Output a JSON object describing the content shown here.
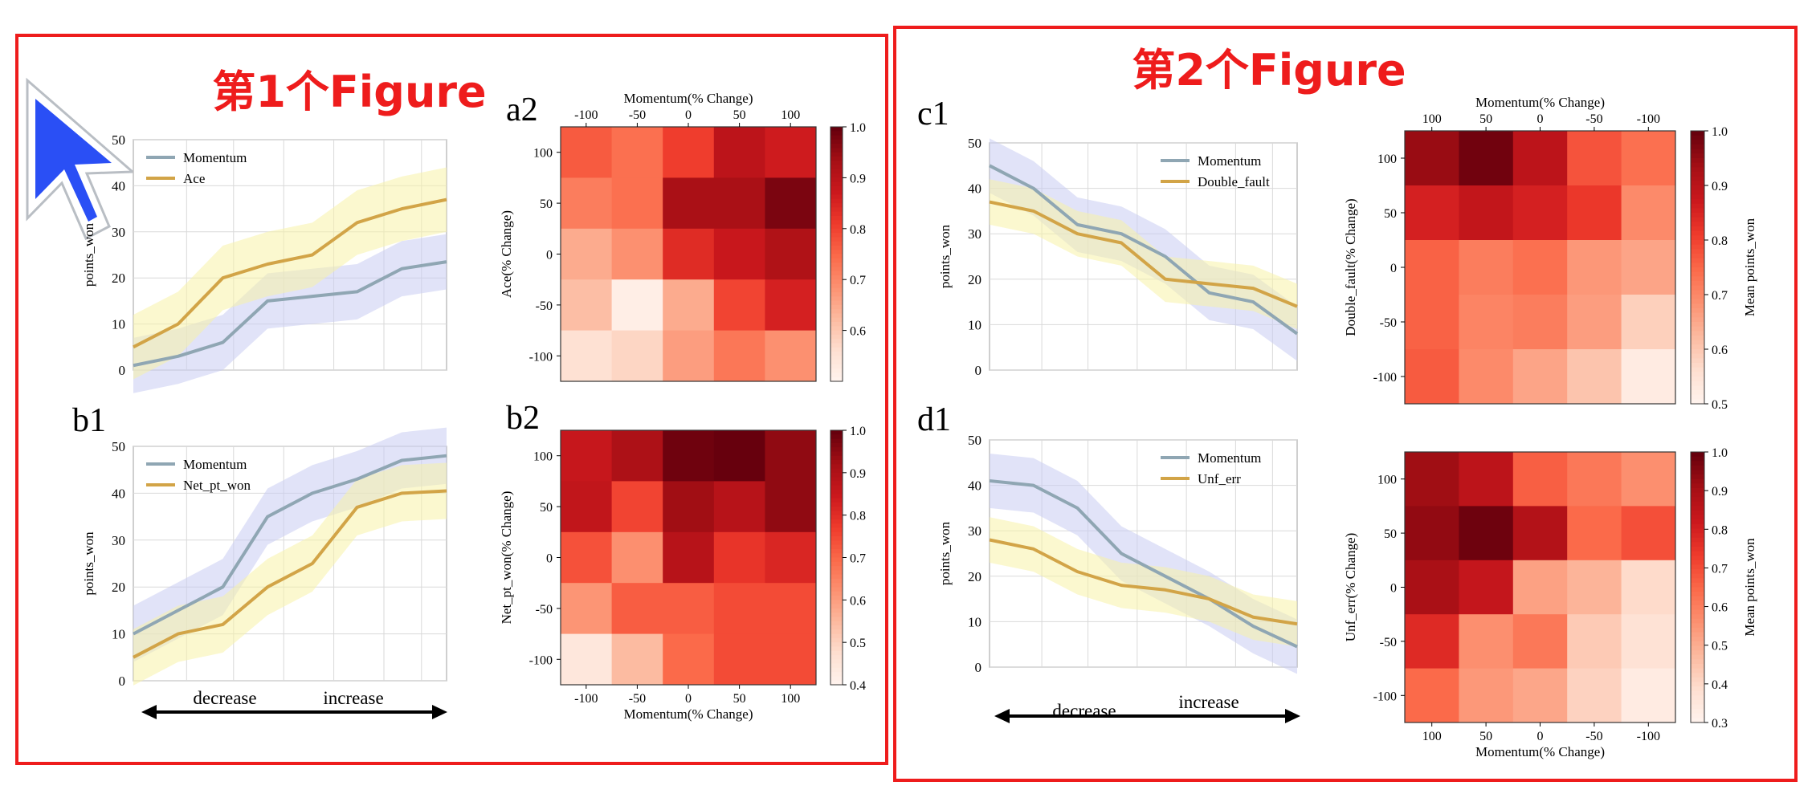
{
  "figure_titles": [
    "第1个Figure",
    "第2个Figure"
  ],
  "colors": {
    "frame_red": "#ee1c1c",
    "momentum_line": "#8fa6b3",
    "other_line": "#d2a447",
    "momentum_band": "#c9ccf2",
    "other_band": "#f7f2a8",
    "cursor": "#2a4ff5",
    "heatmap_low": "#fff5f0",
    "heatmap_high": "#67000d"
  },
  "axis_text": {
    "decrease": "decrease",
    "increase": "increase",
    "colorbar_label": "Mean points_won"
  },
  "chart_data": [
    {
      "id": "a1",
      "type": "line",
      "panel_label": "",
      "ylabel": "points_won",
      "ylim": [
        0,
        50
      ],
      "yticks": [
        0,
        10,
        20,
        30,
        40,
        50
      ],
      "legend": "top-left",
      "series": [
        {
          "name": "Momentum",
          "values": [
            1,
            3,
            6,
            15,
            16,
            17,
            22,
            23.5
          ],
          "band": 6,
          "color_key": "momentum_line",
          "band_key": "momentum_band"
        },
        {
          "name": "Ace",
          "values": [
            5,
            10,
            20,
            23,
            25,
            32,
            35,
            37
          ],
          "band": 7,
          "color_key": "other_line",
          "band_key": "other_band"
        }
      ]
    },
    {
      "id": "b1",
      "type": "line",
      "panel_label": "b1",
      "ylabel": "points_won",
      "ylim": [
        0,
        50
      ],
      "yticks": [
        0,
        10,
        20,
        30,
        40,
        50
      ],
      "legend": "top-left",
      "series": [
        {
          "name": "Momentum",
          "values": [
            10,
            15,
            20,
            35,
            40,
            43,
            47,
            48
          ],
          "band": 6,
          "color_key": "momentum_line",
          "band_key": "momentum_band"
        },
        {
          "name": "Net_pt_won",
          "values": [
            5,
            10,
            12,
            20,
            25,
            37,
            40,
            40.5
          ],
          "band": 6,
          "color_key": "other_line",
          "band_key": "other_band"
        }
      ]
    },
    {
      "id": "c1",
      "type": "line",
      "panel_label": "c1",
      "ylabel": "points_won",
      "ylim": [
        0,
        50
      ],
      "yticks": [
        0,
        10,
        20,
        30,
        40,
        50
      ],
      "legend": "top-right",
      "series": [
        {
          "name": "Momentum",
          "values": [
            45,
            40,
            32,
            30,
            25,
            17,
            15,
            8
          ],
          "band": 6,
          "color_key": "momentum_line",
          "band_key": "momentum_band"
        },
        {
          "name": "Double_fault",
          "values": [
            37,
            35,
            30,
            28,
            20,
            19,
            18,
            14
          ],
          "band": 5,
          "color_key": "other_line",
          "band_key": "other_band"
        }
      ]
    },
    {
      "id": "d1",
      "type": "line",
      "panel_label": "d1",
      "ylabel": "points_won",
      "ylim": [
        0,
        50
      ],
      "yticks": [
        0,
        10,
        20,
        30,
        40,
        50
      ],
      "legend": "top-right",
      "series": [
        {
          "name": "Momentum",
          "values": [
            41,
            40,
            35,
            25,
            20,
            15,
            9,
            4.5
          ],
          "band": 6,
          "color_key": "momentum_line",
          "band_key": "momentum_band"
        },
        {
          "name": "Unf_err",
          "values": [
            28,
            26,
            21,
            18,
            17,
            15,
            11,
            9.5
          ],
          "band": 5,
          "color_key": "other_line",
          "band_key": "other_band"
        }
      ]
    },
    {
      "id": "a2",
      "type": "heatmap",
      "panel_label": "a2",
      "xlabel": "Momentum(% Change)",
      "xlabel_position": "top",
      "ylabel": "Ace(% Change)",
      "x": [
        "-100",
        "-50",
        "0",
        "50",
        "100"
      ],
      "y": [
        "100",
        "50",
        "0",
        "-50",
        "-100"
      ],
      "colorbar_ticks": [
        0.6,
        0.7,
        0.8,
        0.9,
        1.0
      ],
      "vmin": 0.5,
      "vmax": 1.0,
      "values": [
        [
          0.77,
          0.74,
          0.81,
          0.9,
          0.87
        ],
        [
          0.72,
          0.74,
          0.93,
          0.93,
          0.98
        ],
        [
          0.65,
          0.69,
          0.84,
          0.88,
          0.92
        ],
        [
          0.62,
          0.52,
          0.65,
          0.8,
          0.86
        ],
        [
          0.56,
          0.58,
          0.67,
          0.73,
          0.69
        ]
      ]
    },
    {
      "id": "b2",
      "type": "heatmap",
      "panel_label": "b2",
      "xlabel": "Momentum(% Change)",
      "xlabel_position": "bottom",
      "ylabel": "Net_pt_won(% Change)",
      "x": [
        "-100",
        "-50",
        "0",
        "50",
        "100"
      ],
      "y": [
        "100",
        "50",
        "0",
        "-50",
        "-100"
      ],
      "colorbar_ticks": [
        0.4,
        0.5,
        0.6,
        0.7,
        0.8,
        0.9,
        1.0
      ],
      "vmin": 0.4,
      "vmax": 1.0,
      "values": [
        [
          0.86,
          0.91,
          0.99,
          1.0,
          0.95
        ],
        [
          0.87,
          0.76,
          0.93,
          0.89,
          0.95
        ],
        [
          0.74,
          0.63,
          0.89,
          0.79,
          0.82
        ],
        [
          0.62,
          0.72,
          0.72,
          0.75,
          0.75
        ],
        [
          0.45,
          0.55,
          0.7,
          0.75,
          0.75
        ]
      ]
    },
    {
      "id": "c2",
      "type": "heatmap",
      "panel_label": "",
      "xlabel": "Momentum(% Change)",
      "xlabel_position": "top",
      "ylabel": "Double_fault(% Change)",
      "colorbar_label": "Mean points_won",
      "x": [
        "100",
        "50",
        "0",
        "-50",
        "-100"
      ],
      "y": [
        "100",
        "50",
        "0",
        "-50",
        "-100"
      ],
      "colorbar_ticks": [
        0.5,
        0.6,
        0.7,
        0.8,
        0.9,
        1.0
      ],
      "vmin": 0.5,
      "vmax": 1.0,
      "values": [
        [
          0.95,
          0.99,
          0.9,
          0.78,
          0.74
        ],
        [
          0.86,
          0.89,
          0.86,
          0.82,
          0.7
        ],
        [
          0.76,
          0.72,
          0.74,
          0.68,
          0.66
        ],
        [
          0.76,
          0.71,
          0.72,
          0.67,
          0.59
        ],
        [
          0.77,
          0.7,
          0.66,
          0.61,
          0.53
        ]
      ]
    },
    {
      "id": "d2",
      "type": "heatmap",
      "panel_label": "",
      "xlabel": "Momentum(% Change)",
      "xlabel_position": "bottom",
      "ylabel": "Unf_err(% Change)",
      "colorbar_label": "Mean points_won",
      "x": [
        "100",
        "50",
        "0",
        "-50",
        "-100"
      ],
      "y": [
        "100",
        "50",
        "0",
        "-50",
        "-100"
      ],
      "colorbar_ticks": [
        0.3,
        0.4,
        0.5,
        0.6,
        0.7,
        0.8,
        0.9,
        1.0
      ],
      "vmin": 0.3,
      "vmax": 1.0,
      "values": [
        [
          0.92,
          0.86,
          0.67,
          0.62,
          0.57
        ],
        [
          0.94,
          0.99,
          0.88,
          0.65,
          0.7
        ],
        [
          0.9,
          0.84,
          0.53,
          0.49,
          0.4
        ],
        [
          0.78,
          0.57,
          0.62,
          0.44,
          0.38
        ],
        [
          0.65,
          0.55,
          0.52,
          0.42,
          0.34
        ]
      ]
    }
  ]
}
